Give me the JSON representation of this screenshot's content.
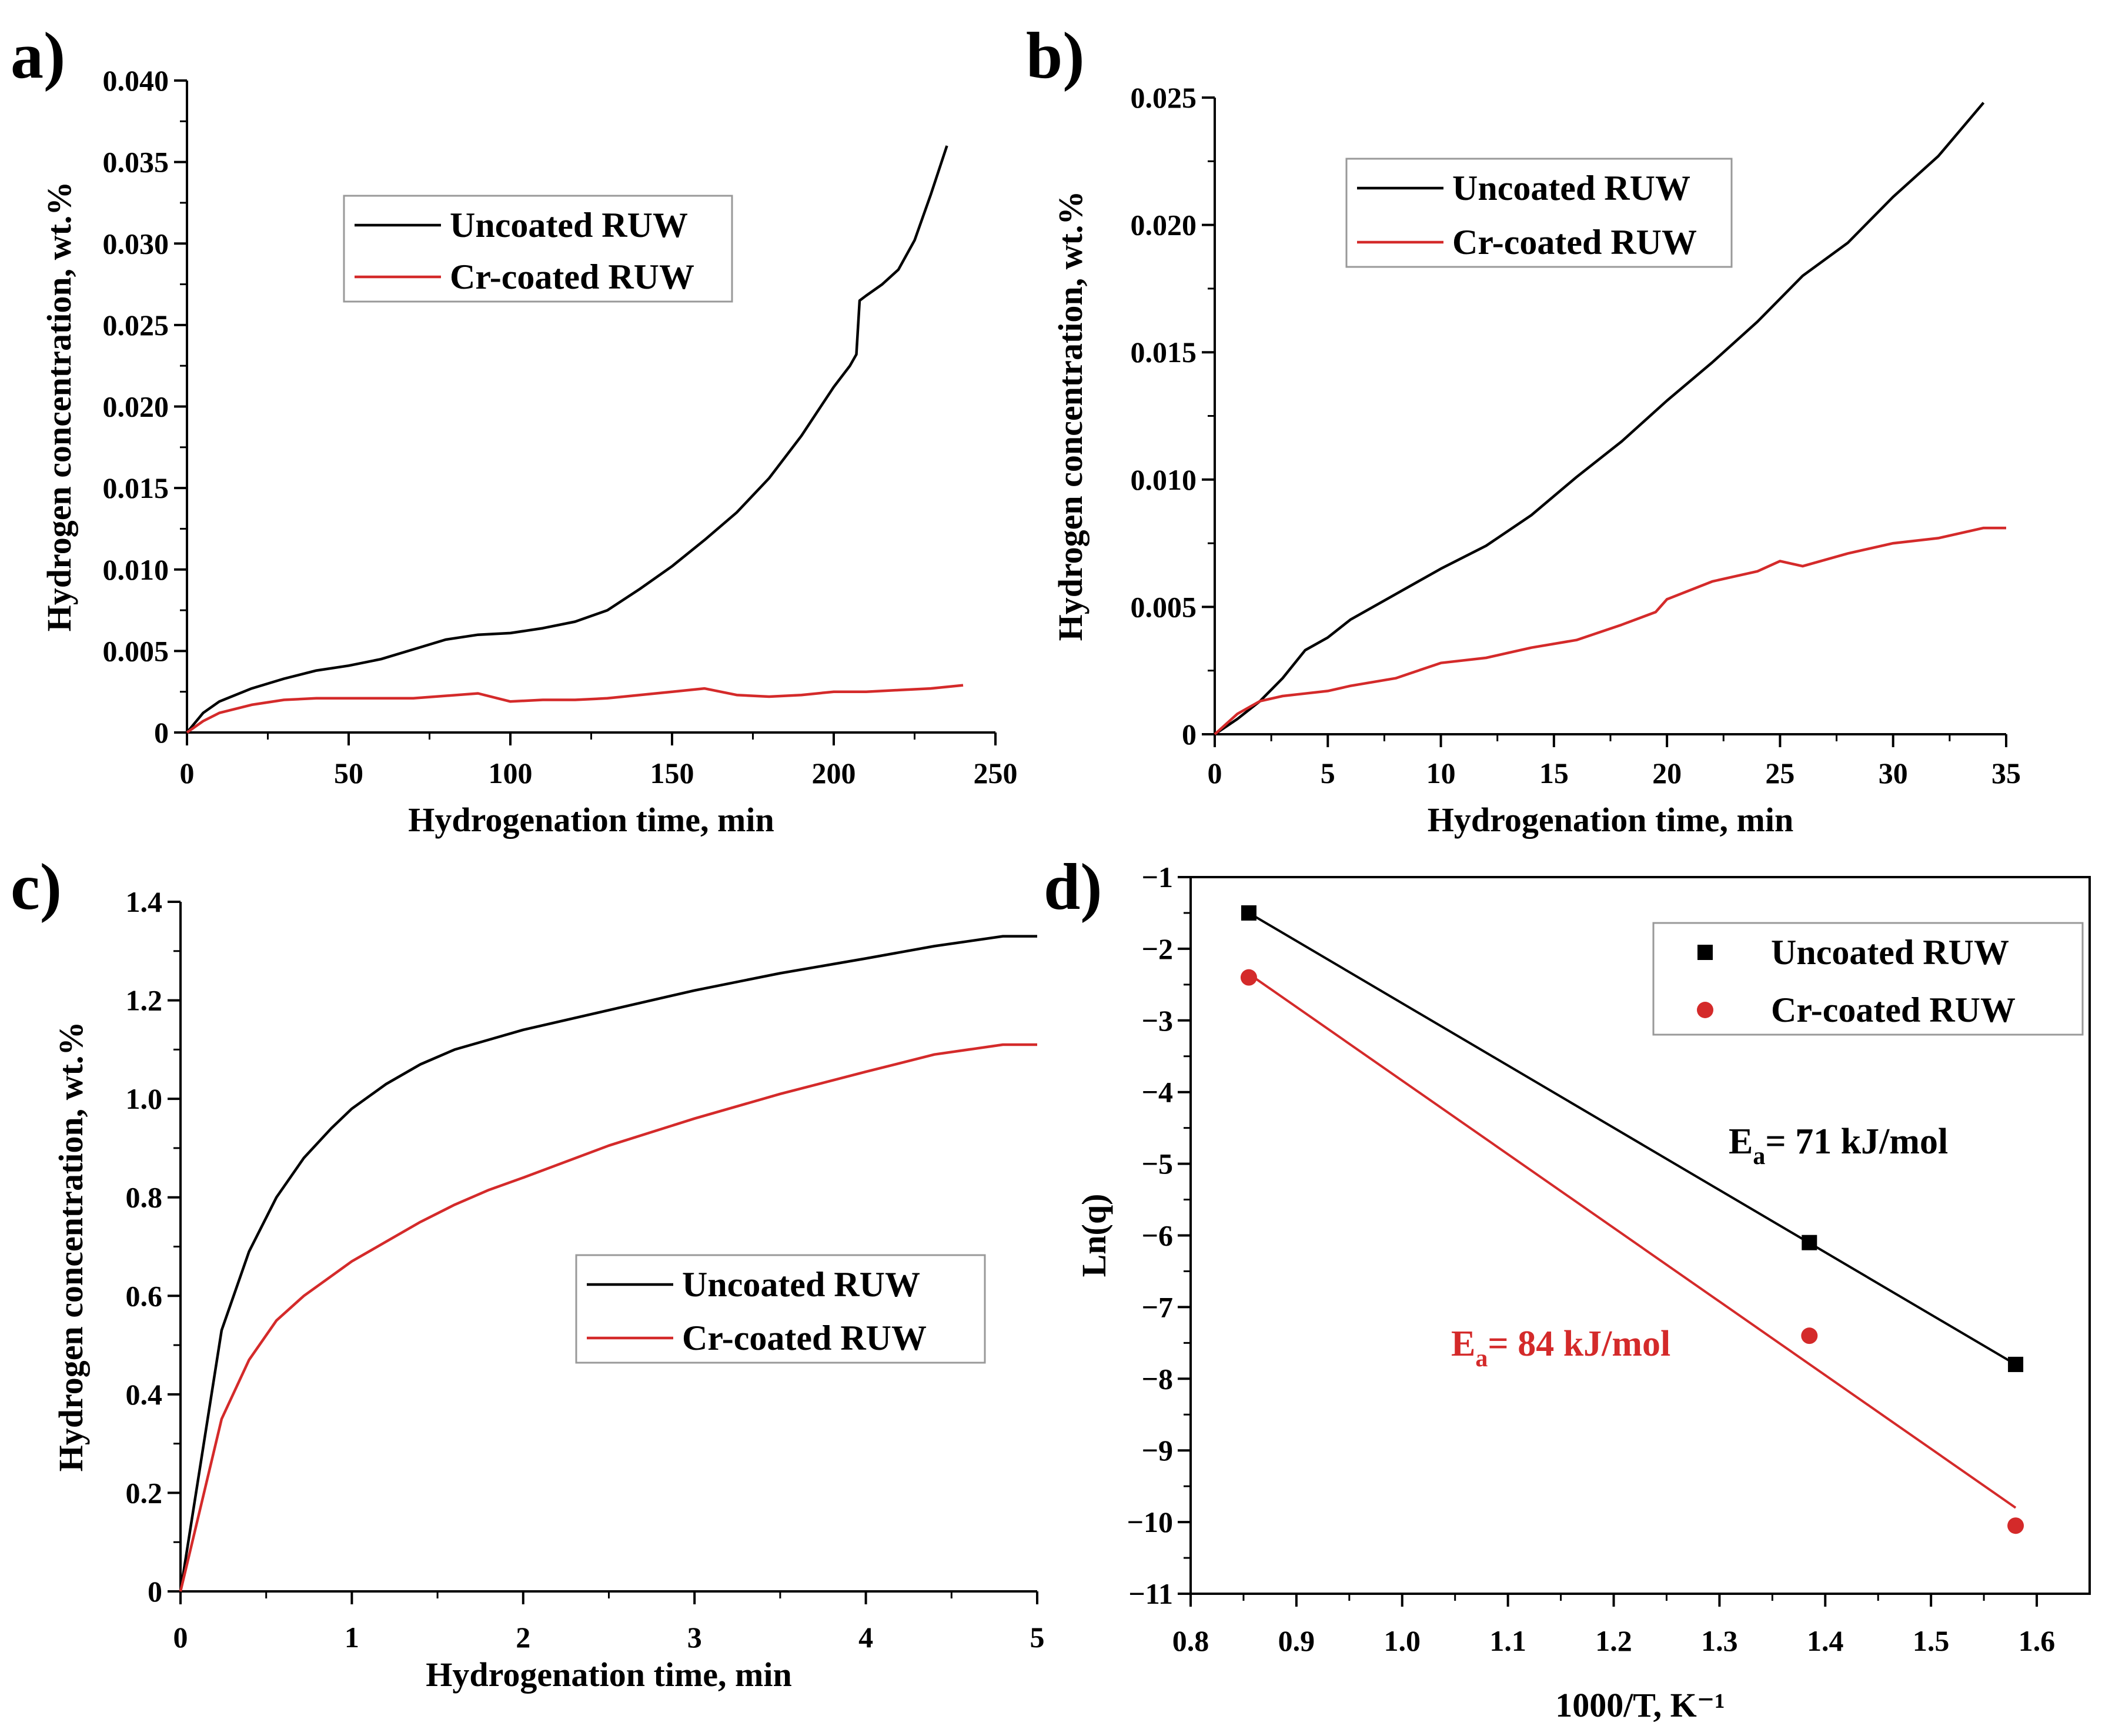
{
  "colors": {
    "uncoated": "#000000",
    "coated": "#d42a2a",
    "axis": "#000000",
    "background": "#ffffff"
  },
  "chart_data": [
    {
      "id": "a",
      "panel_label": "a)",
      "type": "line",
      "xlabel": "Hydrogenation time, min",
      "ylabel": "Hydrogen concentration, wt.%",
      "xlim": [
        0,
        250
      ],
      "ylim": [
        0,
        0.04
      ],
      "xticks": [
        0,
        50,
        100,
        150,
        200,
        250
      ],
      "xtick_labels": [
        "0",
        "50",
        "100",
        "150",
        "200",
        "250"
      ],
      "yticks": [
        0,
        0.005,
        0.01,
        0.015,
        0.02,
        0.025,
        0.03,
        0.035,
        0.04
      ],
      "ytick_labels": [
        "0",
        "0.005",
        "0.010",
        "0.015",
        "0.020",
        "0.025",
        "0.030",
        "0.035",
        "0.040"
      ],
      "legend": [
        "Uncoated RUW",
        "Cr-coated RUW"
      ],
      "series": [
        {
          "name": "Uncoated RUW",
          "color_key": "uncoated",
          "x": [
            0,
            5,
            10,
            20,
            30,
            40,
            50,
            60,
            70,
            80,
            90,
            100,
            110,
            120,
            130,
            140,
            150,
            160,
            170,
            180,
            190,
            195,
            200,
            205,
            207,
            208,
            210,
            215,
            220,
            225,
            230,
            235
          ],
          "y": [
            0,
            0.0012,
            0.0019,
            0.0027,
            0.0033,
            0.0038,
            0.0041,
            0.0045,
            0.0051,
            0.0057,
            0.006,
            0.0061,
            0.0064,
            0.0068,
            0.0075,
            0.0088,
            0.0102,
            0.0118,
            0.0135,
            0.0156,
            0.0182,
            0.0197,
            0.0212,
            0.0225,
            0.0232,
            0.0265,
            0.0268,
            0.0275,
            0.0284,
            0.0302,
            0.033,
            0.036
          ]
        },
        {
          "name": "Cr-coated RUW",
          "color_key": "coated",
          "x": [
            0,
            5,
            10,
            20,
            30,
            40,
            50,
            70,
            90,
            100,
            110,
            120,
            130,
            140,
            150,
            160,
            170,
            180,
            190,
            200,
            210,
            220,
            230,
            240
          ],
          "y": [
            0,
            0.0007,
            0.0012,
            0.0017,
            0.002,
            0.0021,
            0.0021,
            0.0021,
            0.0024,
            0.0019,
            0.002,
            0.002,
            0.0021,
            0.0023,
            0.0025,
            0.0027,
            0.0023,
            0.0022,
            0.0023,
            0.0025,
            0.0025,
            0.0026,
            0.0027,
            0.0029
          ]
        }
      ]
    },
    {
      "id": "b",
      "panel_label": "b)",
      "type": "line",
      "xlabel": "Hydrogenation time, min",
      "ylabel": "Hydrogen concentration, wt.%",
      "xlim": [
        0,
        35
      ],
      "ylim": [
        0,
        0.025
      ],
      "xticks": [
        0,
        5,
        10,
        15,
        20,
        25,
        30,
        35
      ],
      "xtick_labels": [
        "0",
        "5",
        "10",
        "15",
        "20",
        "25",
        "30",
        "35"
      ],
      "yticks": [
        0,
        0.005,
        0.01,
        0.015,
        0.02,
        0.025
      ],
      "ytick_labels": [
        "0",
        "0.005",
        "0.010",
        "0.015",
        "0.020",
        "0.025"
      ],
      "legend": [
        "Uncoated RUW",
        "Cr-coated RUW"
      ],
      "series": [
        {
          "name": "Uncoated RUW",
          "color_key": "uncoated",
          "x": [
            0,
            1,
            2,
            3,
            4,
            5,
            6,
            8,
            10,
            12,
            14,
            16,
            18,
            20,
            22,
            24,
            26,
            28,
            30,
            32,
            34
          ],
          "y": [
            0,
            0.0006,
            0.0013,
            0.0022,
            0.0033,
            0.0038,
            0.0045,
            0.0055,
            0.0065,
            0.0074,
            0.0086,
            0.0101,
            0.0115,
            0.0131,
            0.0146,
            0.0162,
            0.018,
            0.0193,
            0.0211,
            0.0227,
            0.0248
          ]
        },
        {
          "name": "Cr-coated RUW",
          "color_key": "coated",
          "x": [
            0,
            1,
            2,
            3,
            4,
            5,
            6,
            8,
            10,
            12,
            14,
            16,
            18,
            19.5,
            20,
            22,
            24,
            25,
            26,
            28,
            30,
            32,
            34,
            35
          ],
          "y": [
            0,
            0.0008,
            0.0013,
            0.0015,
            0.0016,
            0.0017,
            0.0019,
            0.0022,
            0.0028,
            0.003,
            0.0034,
            0.0037,
            0.0043,
            0.0048,
            0.0053,
            0.006,
            0.0064,
            0.0068,
            0.0066,
            0.0071,
            0.0075,
            0.0077,
            0.0081,
            0.0081
          ]
        }
      ]
    },
    {
      "id": "c",
      "panel_label": "c)",
      "type": "line",
      "xlabel": "Hydrogenation time, min",
      "ylabel": "Hydrogen concentration, wt.%",
      "xlim": [
        0,
        5
      ],
      "ylim": [
        0,
        1.4
      ],
      "xticks": [
        0,
        1,
        2,
        3,
        4,
        5
      ],
      "xtick_labels": [
        "0",
        "1",
        "2",
        "3",
        "4",
        "5"
      ],
      "yticks": [
        0,
        0.2,
        0.4,
        0.6,
        0.8,
        1.0,
        1.2,
        1.4
      ],
      "ytick_labels": [
        "0",
        "0.2",
        "0.4",
        "0.6",
        "0.8",
        "1.0",
        "1.2",
        "1.4"
      ],
      "legend": [
        "Uncoated RUW",
        "Cr-coated RUW"
      ],
      "series": [
        {
          "name": "Uncoated RUW",
          "color_key": "uncoated",
          "x": [
            0,
            0.24,
            0.4,
            0.56,
            0.72,
            0.88,
            1.0,
            1.2,
            1.4,
            1.6,
            1.8,
            2.0,
            2.5,
            3.0,
            3.5,
            4.0,
            4.4,
            4.8,
            5.0
          ],
          "y": [
            0,
            0.53,
            0.69,
            0.8,
            0.88,
            0.94,
            0.98,
            1.03,
            1.07,
            1.1,
            1.12,
            1.14,
            1.18,
            1.22,
            1.255,
            1.285,
            1.31,
            1.33,
            1.33
          ]
        },
        {
          "name": "Cr-coated RUW",
          "color_key": "coated",
          "x": [
            0,
            0.24,
            0.4,
            0.56,
            0.72,
            0.88,
            1.0,
            1.2,
            1.4,
            1.6,
            1.8,
            2.0,
            2.5,
            3.0,
            3.5,
            4.0,
            4.4,
            4.8,
            5.0
          ],
          "y": [
            0,
            0.35,
            0.47,
            0.55,
            0.6,
            0.64,
            0.67,
            0.71,
            0.75,
            0.785,
            0.815,
            0.84,
            0.905,
            0.96,
            1.01,
            1.055,
            1.09,
            1.11,
            1.11
          ]
        }
      ]
    },
    {
      "id": "d",
      "panel_label": "d)",
      "type": "scatter",
      "xlabel": "1000/T, K⁻¹",
      "ylabel": "Ln(q)",
      "xlim": [
        0.8,
        1.65
      ],
      "ylim": [
        -11,
        -1
      ],
      "xticks": [
        0.8,
        0.9,
        1.0,
        1.1,
        1.2,
        1.3,
        1.4,
        1.5,
        1.6
      ],
      "xtick_labels": [
        "0.8",
        "0.9",
        "1.0",
        "1.1",
        "1.2",
        "1.3",
        "1.4",
        "1.5",
        "1.6"
      ],
      "yticks": [
        -11,
        -10,
        -9,
        -8,
        -7,
        -6,
        -5,
        -4,
        -3,
        -2,
        -1
      ],
      "ytick_labels": [
        "−11",
        "−10",
        "−9",
        "−8",
        "−7",
        "−6",
        "−5",
        "−4",
        "−3",
        "−2",
        "−1"
      ],
      "legend": [
        "Uncoated RUW",
        "Cr-coated RUW"
      ],
      "series": [
        {
          "name": "Uncoated RUW",
          "color_key": "uncoated",
          "marker": "square",
          "x": [
            0.855,
            1.385,
            1.58
          ],
          "y": [
            -1.5,
            -6.1,
            -7.8
          ],
          "fit": {
            "x": [
              0.855,
              1.58
            ],
            "y": [
              -1.5,
              -7.8
            ]
          }
        },
        {
          "name": "Cr-coated RUW",
          "color_key": "coated",
          "marker": "circle",
          "x": [
            0.855,
            1.385,
            1.58
          ],
          "y": [
            -2.4,
            -7.4,
            -10.05
          ],
          "fit": {
            "x": [
              0.855,
              1.58
            ],
            "y": [
              -2.35,
              -9.8
            ]
          }
        }
      ],
      "annotations": [
        {
          "base": "E",
          "sub": "a",
          "rest": "= 71 kJ/mol",
          "color_key": "uncoated"
        },
        {
          "base": "E",
          "sub": "a",
          "rest": "= 84 kJ/mol",
          "color_key": "coated"
        }
      ]
    }
  ]
}
